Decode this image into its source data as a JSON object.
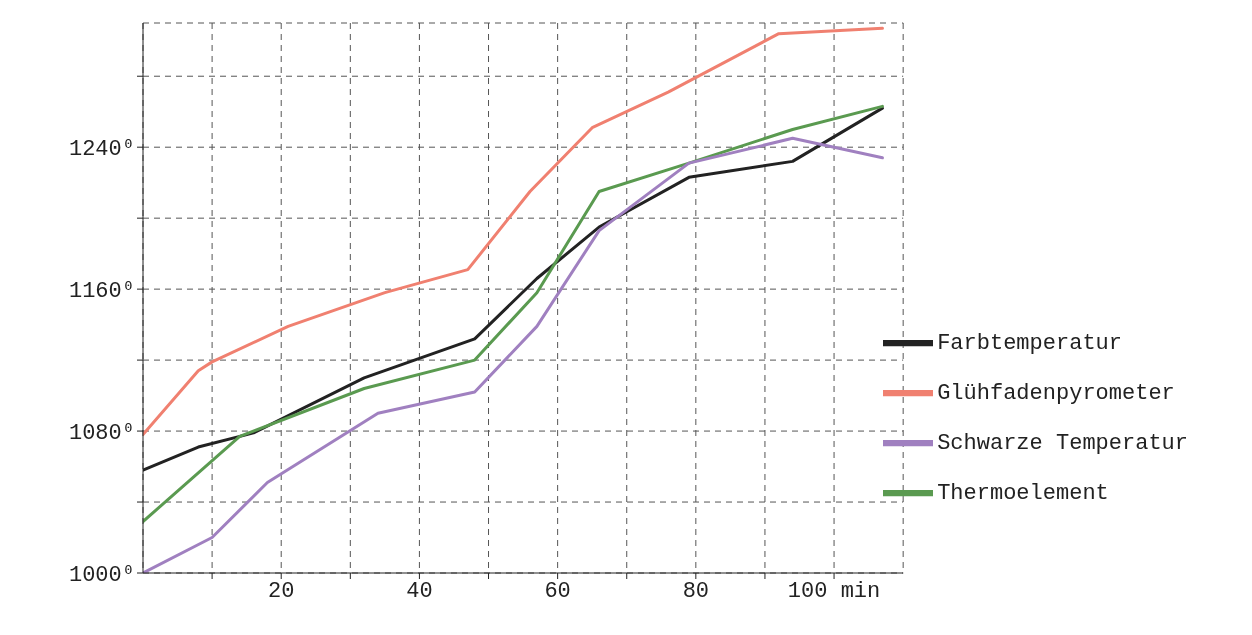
{
  "chart_data": {
    "type": "line",
    "legend": "right",
    "grid": true,
    "line_style": "solid",
    "marker": "none",
    "xlim": [
      0,
      110
    ],
    "xticks": [
      {
        "value": 10,
        "label": null
      },
      {
        "value": 20,
        "label": "20"
      },
      {
        "value": 30,
        "label": null
      },
      {
        "value": 40,
        "label": "40"
      },
      {
        "value": 50,
        "label": null
      },
      {
        "value": 60,
        "label": "60"
      },
      {
        "value": 70,
        "label": null
      },
      {
        "value": 80,
        "label": "80"
      },
      {
        "value": 90,
        "label": null
      },
      {
        "value": 100,
        "label": "100 min"
      }
    ],
    "ylim": [
      1000,
      1310
    ],
    "yticks": [
      {
        "value": 1000,
        "label": "1000⁰"
      },
      {
        "value": 1040,
        "label": null
      },
      {
        "value": 1080,
        "label": "1080⁰"
      },
      {
        "value": 1120,
        "label": null
      },
      {
        "value": 1160,
        "label": "1160⁰"
      },
      {
        "value": 1200,
        "label": null
      },
      {
        "value": 1240,
        "label": "1240⁰"
      },
      {
        "value": 1280,
        "label": null
      }
    ],
    "series": [
      {
        "name": "Glühfadenpyrometer",
        "color": "#f08070",
        "x": [
          0,
          8,
          10,
          21,
          35,
          47,
          56,
          65,
          76,
          92,
          107
        ],
        "values": [
          1078,
          1114,
          1119,
          1139,
          1158,
          1171,
          1215,
          1251,
          1271,
          1304,
          1307
        ]
      },
      {
        "name": "Farbtemperatur",
        "color": "#222222",
        "x": [
          0,
          8,
          16,
          32,
          48,
          57,
          66,
          79,
          94,
          107
        ],
        "values": [
          1058,
          1071,
          1079,
          1110,
          1132,
          1166,
          1195,
          1223,
          1232,
          1262
        ]
      },
      {
        "name": "Thermoelement",
        "color": "#5a9a50",
        "x": [
          0,
          14,
          32,
          48,
          57,
          66,
          79,
          94,
          107
        ],
        "values": [
          1029,
          1077,
          1104,
          1120,
          1158,
          1215,
          1231,
          1250,
          1263
        ]
      },
      {
        "name": "Schwarze Temperatur",
        "color": "#a080c0",
        "x": [
          0,
          10,
          18,
          34,
          48,
          57,
          66,
          79,
          94,
          107
        ],
        "values": [
          1000,
          1020,
          1051,
          1090,
          1102,
          1139,
          1193,
          1231,
          1245,
          1234
        ]
      }
    ]
  }
}
